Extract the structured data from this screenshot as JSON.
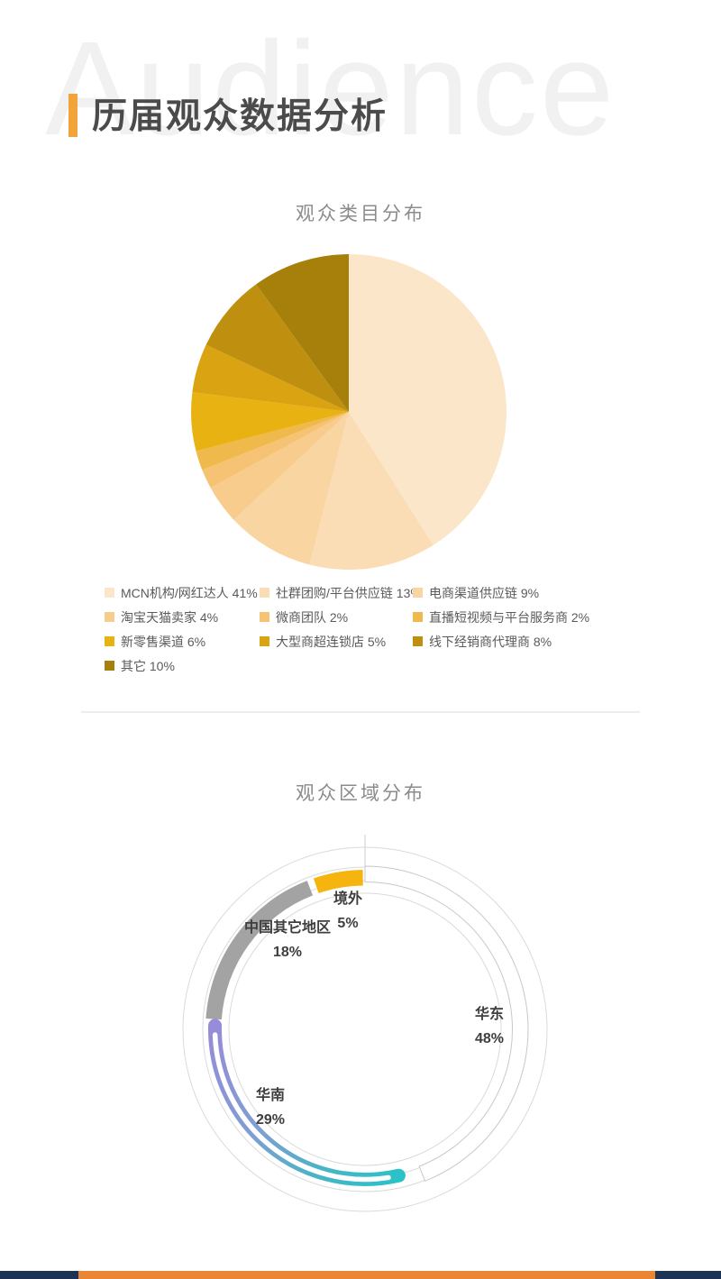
{
  "page": {
    "watermark": "Audience",
    "title": "历届观众数据分析",
    "accent_color": "#F2A33A"
  },
  "chart_data": [
    {
      "type": "pie",
      "title": "观众类目分布",
      "direction": "clockwise",
      "start_angle": "12-o'clock",
      "unit": "%",
      "categories": [
        "MCN机构/网红达人",
        "社群团购/平台供应链",
        "电商渠道供应链",
        "淘宝天猫卖家",
        "微商团队",
        "直播短视频与平台服务商",
        "新零售渠道",
        "大型商超连锁店",
        "线下经销商代理商",
        "其它"
      ],
      "values": [
        41,
        13,
        9,
        4,
        2,
        2,
        6,
        5,
        8,
        10
      ],
      "colors": [
        "#FBE6CA",
        "#FADDB5",
        "#F9D5A2",
        "#F7CC8C",
        "#F5C373",
        "#F0B94C",
        "#E9B213",
        "#DAA311",
        "#BF9010",
        "#A6800A"
      ],
      "legend": [
        "MCN机构/网红达人 41%",
        "社群团购/平台供应链 13%",
        "电商渠道供应链 9%",
        "淘宝天猫卖家 4%",
        "微商团队 2%",
        "直播短视频与平台服务商 2%",
        "新零售渠道 6%",
        "大型商超连锁店 5%",
        "线下经销商代理商 8%",
        "其它 10%"
      ],
      "legend_position": "bottom"
    },
    {
      "type": "radial-bar",
      "title": "观众区域分布",
      "direction": "counterclockwise",
      "start_angle": "12-o'clock",
      "unit": "%",
      "categories": [
        "境外",
        "中国其它地区",
        "华南",
        "华东"
      ],
      "values": [
        5,
        18,
        29,
        48
      ],
      "value_labels": [
        "5%",
        "18%",
        "29%",
        "48%"
      ],
      "bar_styles": [
        {
          "fill": "#F5B40E"
        },
        {
          "fill": "#A3A3A3"
        },
        {
          "gradient": [
            "#968CD9",
            "#7E9FD2",
            "#4BB3C6",
            "#2BC2C7"
          ],
          "centerline": "#FFFFFF"
        },
        {
          "fill": "#FFFFFF",
          "outline": "#C8C8C8"
        }
      ],
      "grid": "4 concentric guide circles",
      "grid_color": "#DADADA"
    }
  ],
  "footer": {
    "navy": "#1C3355",
    "orange": "#EA8534"
  }
}
